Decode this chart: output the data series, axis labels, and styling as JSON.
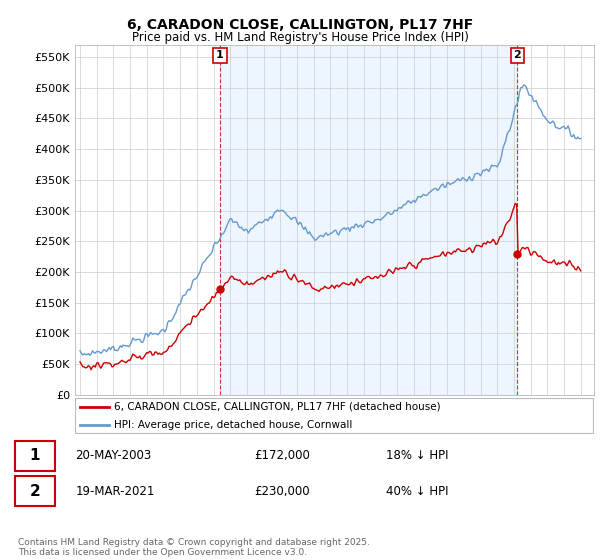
{
  "title": "6, CARADON CLOSE, CALLINGTON, PL17 7HF",
  "subtitle": "Price paid vs. HM Land Registry's House Price Index (HPI)",
  "legend_line1": "6, CARADON CLOSE, CALLINGTON, PL17 7HF (detached house)",
  "legend_line2": "HPI: Average price, detached house, Cornwall",
  "transaction1_date": "20-MAY-2003",
  "transaction1_price": "£172,000",
  "transaction1_hpi": "18% ↓ HPI",
  "transaction2_date": "19-MAR-2021",
  "transaction2_price": "£230,000",
  "transaction2_hpi": "40% ↓ HPI",
  "footer": "Contains HM Land Registry data © Crown copyright and database right 2025.\nThis data is licensed under the Open Government Licence v3.0.",
  "line_color_red": "#cc0000",
  "line_color_blue": "#6699cc",
  "fill_color_blue": "#ddeeff",
  "ylim": [
    0,
    570000
  ],
  "yticks": [
    0,
    50000,
    100000,
    150000,
    200000,
    250000,
    300000,
    350000,
    400000,
    450000,
    500000,
    550000
  ],
  "transaction1_x": 2003.38,
  "transaction1_y": 172000,
  "transaction2_x": 2021.21,
  "transaction2_y": 230000,
  "bg_color": "#ffffff",
  "grid_color": "#cccccc",
  "xmin": 1994.7,
  "xmax": 2025.8
}
